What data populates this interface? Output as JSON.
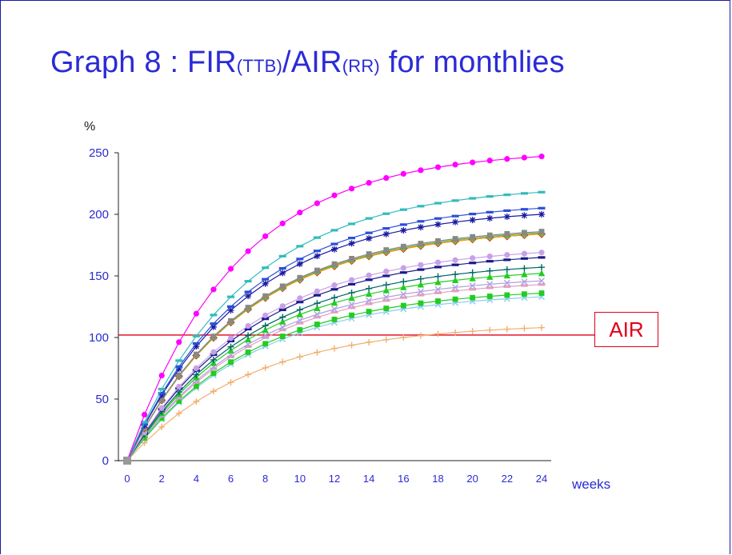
{
  "slide": {
    "title_main": "Graph 8 : FIR",
    "title_sub1": "(TTB)",
    "title_mid": "/AIR",
    "title_sub2": "(RR)",
    "title_end": " for monthlies"
  },
  "colors": {
    "title": "#2b2bd6",
    "axis_text": "#2a2ad0",
    "air_line": "#e0001a",
    "frame": "#1a1aa8"
  },
  "chart_data": {
    "type": "line",
    "ylabel": "%",
    "xlabel": "weeks",
    "ylim": [
      0,
      250
    ],
    "xlim": [
      0,
      24
    ],
    "yticks": [
      0,
      50,
      100,
      150,
      200,
      250
    ],
    "xticks": [
      0,
      2,
      4,
      6,
      8,
      10,
      12,
      14,
      16,
      18,
      20,
      22,
      24
    ],
    "grid": false,
    "air_line": {
      "label": "AIR",
      "y": 102
    },
    "series": [
      {
        "color": "#ff00ff",
        "marker": "circle",
        "final": 247,
        "k": 0.16
      },
      {
        "color": "#33bbbb",
        "marker": "dash",
        "final": 218,
        "k": 0.15
      },
      {
        "color": "#2a4fd8",
        "marker": "dash",
        "final": 205,
        "k": 0.15
      },
      {
        "color": "#1a1aa0",
        "marker": "star",
        "final": 200,
        "k": 0.15
      },
      {
        "color": "#888888",
        "marker": "square",
        "final": 186,
        "k": 0.15
      },
      {
        "color": "#6ab04c",
        "marker": "triangle",
        "final": 185,
        "k": 0.15
      },
      {
        "color": "#d42020",
        "marker": "diamond",
        "final": 184,
        "k": 0.15
      },
      {
        "color": "#f0a000",
        "marker": "diamond",
        "final": 184,
        "k": 0.15
      },
      {
        "color": "#c8a0e8",
        "marker": "circle",
        "final": 169,
        "k": 0.14
      },
      {
        "color": "#1a1a8a",
        "marker": "dash",
        "final": 165,
        "k": 0.14
      },
      {
        "color": "#006666",
        "marker": "plus",
        "final": 157,
        "k": 0.14
      },
      {
        "color": "#22cc22",
        "marker": "triangle",
        "final": 152,
        "k": 0.14
      },
      {
        "color": "#b0a0e0",
        "marker": "x",
        "final": 146,
        "k": 0.14
      },
      {
        "color": "#e0a0c0",
        "marker": "dash",
        "final": 143,
        "k": 0.14
      },
      {
        "color": "#22cc22",
        "marker": "square",
        "final": 136,
        "k": 0.14
      },
      {
        "color": "#88ccee",
        "marker": "x",
        "final": 133,
        "k": 0.14
      },
      {
        "color": "#f0b070",
        "marker": "plus",
        "final": 108,
        "k": 0.14
      }
    ]
  }
}
